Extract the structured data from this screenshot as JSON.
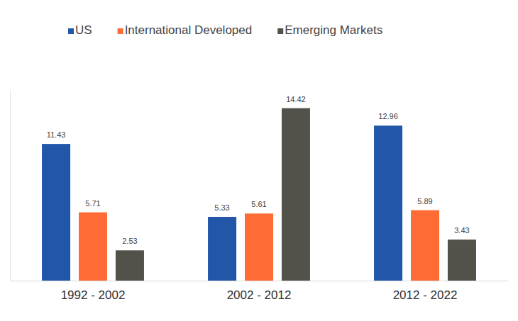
{
  "chart_data": {
    "type": "bar",
    "categories": [
      "1992 - 2002",
      "2002 - 2012",
      "2012 - 2022"
    ],
    "series": [
      {
        "name": "US",
        "color": "#2256a9",
        "values": [
          11.43,
          5.33,
          12.96
        ]
      },
      {
        "name": "International Developed",
        "color": "#fe6b35",
        "values": [
          5.71,
          5.61,
          5.89
        ]
      },
      {
        "name": "Emerging Markets",
        "color": "#52524a",
        "values": [
          2.53,
          14.42,
          3.43
        ]
      }
    ],
    "ylim": [
      0,
      16
    ],
    "grid": false,
    "legend": "top",
    "data_labels": true,
    "tick_labels": "x"
  }
}
